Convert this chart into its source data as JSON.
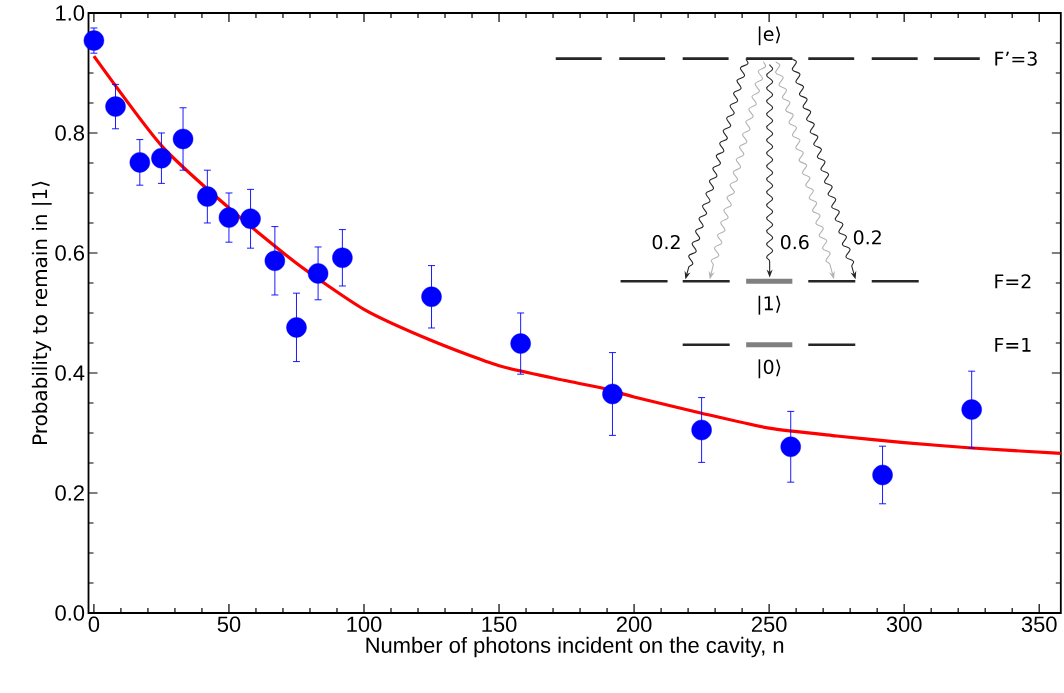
{
  "chart_data": {
    "type": "scatter",
    "xlabel": "Number of photons incident on the cavity, n",
    "ylabel": "Probability to remain in |1⟩",
    "xlim": [
      -2,
      358
    ],
    "ylim": [
      0,
      1
    ],
    "xticks": [
      0,
      50,
      100,
      150,
      200,
      250,
      300,
      350
    ],
    "yticks": [
      {
        "value": 0,
        "label": "0.0"
      },
      0.2,
      0.4,
      0.6,
      0.8,
      {
        "value": 1,
        "label": "1.0"
      }
    ],
    "marker": "circle",
    "annotations": [
      "|e⟩",
      "F’=3",
      "0.2",
      "0.6",
      "0.2",
      "F=2",
      "|1⟩",
      "F=1",
      "|0⟩"
    ],
    "series": [
      {
        "color": "#0000ff",
        "x": [
          0,
          8,
          17,
          25,
          33,
          42,
          50,
          58,
          67,
          75,
          83,
          92,
          125,
          158,
          192,
          225,
          258,
          292,
          325
        ],
        "values": [
          0.954,
          0.844,
          0.751,
          0.758,
          0.79,
          0.694,
          0.659,
          0.657,
          0.587,
          0.476,
          0.566,
          0.592,
          0.527,
          0.449,
          0.365,
          0.305,
          0.277,
          0.23,
          0.339
        ],
        "errors": [
          0.021,
          0.037,
          0.038,
          0.042,
          0.052,
          0.044,
          0.041,
          0.049,
          0.057,
          0.057,
          0.044,
          0.047,
          0.052,
          0.051,
          0.069,
          0.054,
          0.059,
          0.048,
          0.064
        ]
      },
      {
        "type": "line",
        "marker": "none",
        "color": "#ff0000",
        "x": [
          0,
          25,
          50,
          75,
          100,
          125,
          150,
          175,
          190,
          200,
          225,
          250,
          275,
          300,
          325,
          358
        ],
        "values": [
          0.928,
          0.779,
          0.675,
          0.583,
          0.506,
          0.454,
          0.412,
          0.387,
          0.373,
          0.36,
          0.333,
          0.308,
          0.295,
          0.284,
          0.275,
          0.266
        ]
      }
    ]
  }
}
